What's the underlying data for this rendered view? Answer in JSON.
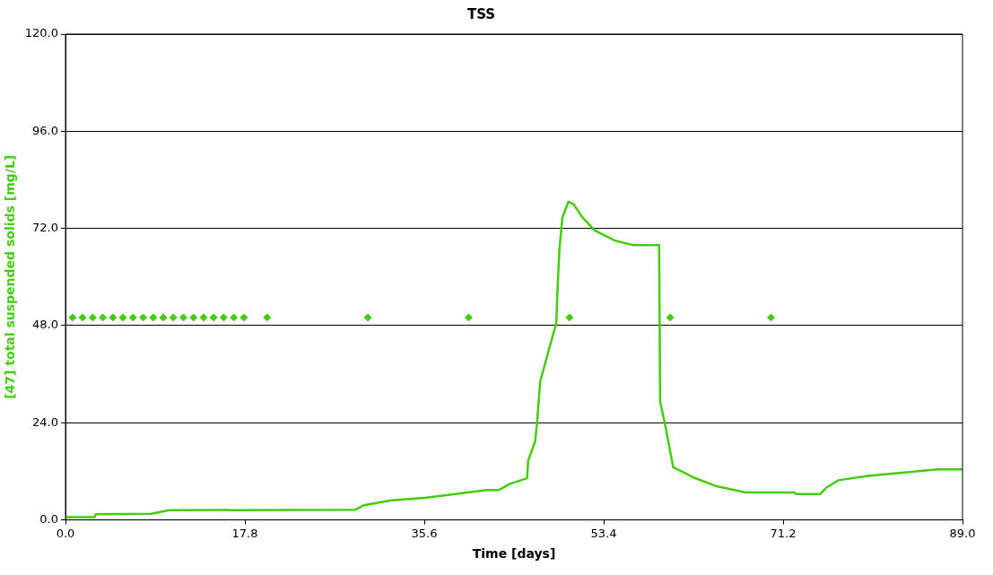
{
  "chart_data": {
    "type": "line",
    "title": "TSS",
    "xlabel": "Time [days]",
    "ylabel": "[47] total suspended solids [mg/L]",
    "xlim": [
      0,
      89
    ],
    "xticks": [
      {
        "value": 0,
        "label": "0.0"
      },
      17.8,
      35.6,
      53.4,
      71.2,
      {
        "value": 89,
        "label": "89.0"
      }
    ],
    "ylim": [
      0,
      120
    ],
    "yticks": [
      {
        "value": 0,
        "label": "0.0"
      },
      {
        "value": 24,
        "label": "24.0"
      },
      {
        "value": 48,
        "label": "48.0"
      },
      {
        "value": 72,
        "label": "72.0"
      },
      {
        "value": 96,
        "label": "96.0"
      },
      {
        "value": 120,
        "label": "120.0"
      }
    ],
    "grid": "y",
    "legend": false,
    "series": [
      {
        "color": "#44cc11",
        "marker": "none",
        "x": [
          0,
          2.9,
          3.0,
          8.5,
          10.3,
          28.7,
          29.6,
          32.2,
          35.8,
          39.3,
          41.9,
          43.0,
          44.1,
          45.8,
          45.9,
          46.6,
          46.8,
          47.1,
          47.9,
          48.7,
          48.8,
          49.0,
          49.3,
          49.9,
          50.4,
          51.3,
          52.5,
          54.5,
          56.3,
          58.9,
          59.0,
          59.5,
          60.3,
          62.3,
          64.5,
          67.5,
          72.3,
          72.5,
          74.9,
          75.5,
          76.7,
          79.6,
          83.7,
          86.5,
          89
        ],
        "values": [
          0.7,
          0.7,
          1.4,
          1.5,
          2.4,
          2.5,
          3.6,
          4.8,
          5.5,
          6.6,
          7.4,
          7.4,
          8.9,
          10.3,
          14.6,
          19.4,
          24.4,
          34.2,
          41.5,
          48.7,
          56,
          66.6,
          74.7,
          78.6,
          78,
          74.7,
          71.5,
          69,
          67.9,
          67.9,
          29.2,
          23.4,
          13,
          10.5,
          8.4,
          6.8,
          6.8,
          6.4,
          6.4,
          8,
          9.8,
          10.9,
          11.8,
          12.5,
          12.5
        ]
      },
      {
        "type": "scatter",
        "color": "#44cc11",
        "marker": "diamond",
        "x": [
          0.7,
          1.7,
          2.7,
          3.7,
          4.7,
          5.7,
          6.7,
          7.7,
          8.7,
          9.7,
          10.7,
          11.7,
          12.7,
          13.7,
          14.7,
          15.7,
          16.7,
          17.7,
          20,
          30,
          40,
          50,
          60,
          70
        ],
        "values": [
          50,
          50,
          50,
          50,
          50,
          50,
          50,
          50,
          50,
          50,
          50,
          50,
          50,
          50,
          50,
          50,
          50,
          50,
          50,
          50,
          50,
          50,
          50,
          50
        ]
      }
    ]
  }
}
